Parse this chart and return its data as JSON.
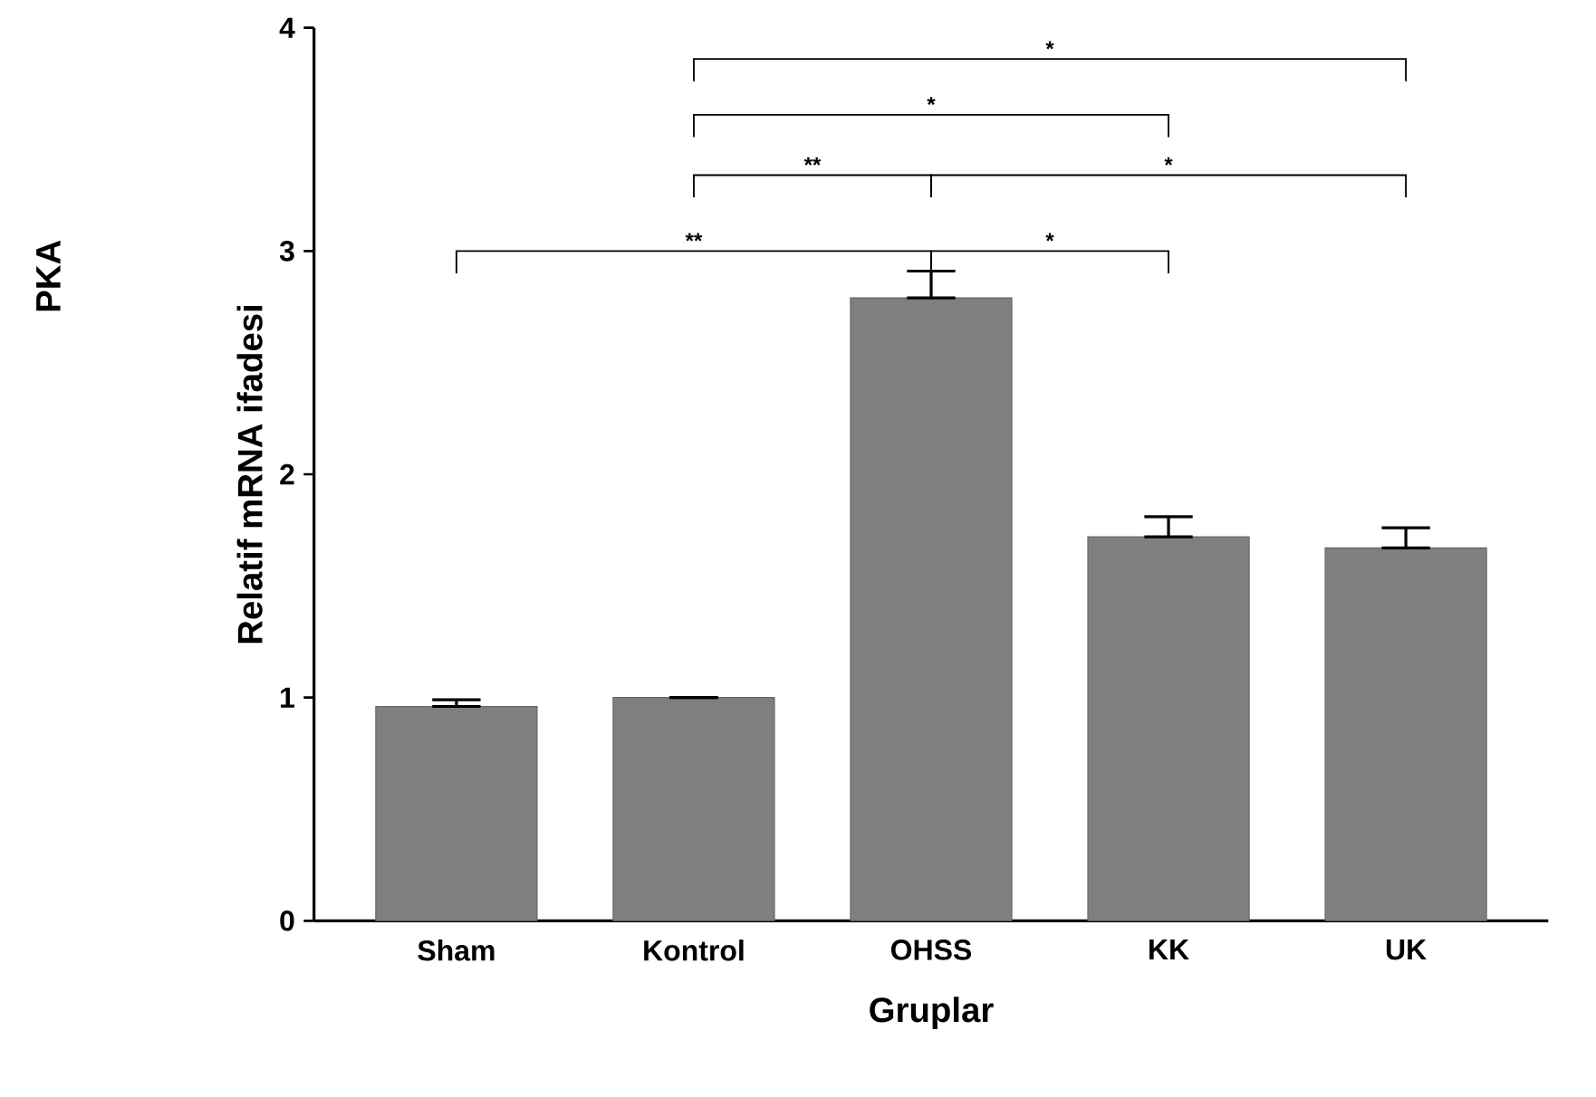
{
  "chart_data": {
    "type": "bar",
    "title": "PKA",
    "xlabel": "Gruplar",
    "ylabel": "Relatif mRNA ifadesi",
    "categories": [
      "Sham",
      "Kontrol",
      "OHSS",
      "KK",
      "UK"
    ],
    "values": [
      0.96,
      1.0,
      2.79,
      1.72,
      1.67
    ],
    "errors": [
      [
        0.96,
        0.99
      ],
      null,
      [
        2.79,
        2.91
      ],
      [
        1.72,
        1.81
      ],
      [
        1.67,
        1.76
      ]
    ],
    "color": "#7f7f7f",
    "ylim": [
      0,
      4
    ],
    "yticks": [
      0,
      1,
      2,
      3,
      4
    ],
    "annotations": [
      "**",
      "**",
      "*",
      "*",
      "*",
      "*"
    ],
    "grid": false
  }
}
